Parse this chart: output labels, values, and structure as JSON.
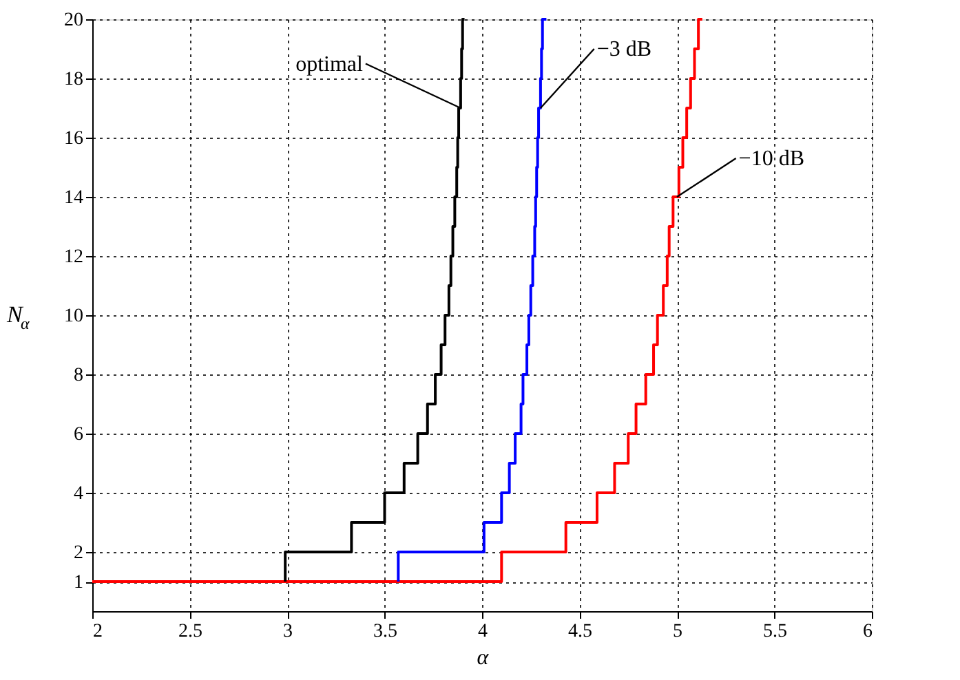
{
  "chart_data": {
    "type": "step",
    "xlabel": "α",
    "ylabel": "N$_{α}$",
    "xlim": [
      2,
      6
    ],
    "ylim": [
      0,
      20
    ],
    "xticks": [
      2,
      2.5,
      3,
      3.5,
      4,
      4.5,
      5,
      5.5,
      6
    ],
    "yticks": [
      1,
      2,
      4,
      6,
      8,
      10,
      12,
      14,
      16,
      18,
      20
    ],
    "grid": true,
    "line_style": "solid",
    "marker": "none",
    "legend": false,
    "series": [
      {
        "color": "#ff0000",
        "x": [
          2,
          4.1,
          4.43,
          4.59,
          4.68,
          4.75,
          4.79,
          4.84,
          4.88,
          4.9,
          4.93,
          4.95,
          4.96,
          4.98,
          5.01,
          5.03,
          5.05,
          5.07,
          5.09,
          5.11,
          5.13
        ],
        "values": [
          1,
          2,
          3,
          4,
          5,
          6,
          7,
          8,
          9,
          10,
          11,
          12,
          13,
          14,
          15,
          16,
          17,
          18,
          19,
          20,
          20
        ]
      },
      {
        "color": "#0000ff",
        "x": [
          3.57,
          3.57,
          4.01,
          4.1,
          4.14,
          4.17,
          4.2,
          4.21,
          4.23,
          4.24,
          4.25,
          4.26,
          4.27,
          4.275,
          4.28,
          4.285,
          4.29,
          4.3,
          4.305,
          4.31,
          4.33
        ],
        "values": [
          1,
          2,
          3,
          4,
          5,
          6,
          7,
          8,
          9,
          10,
          11,
          12,
          13,
          14,
          15,
          16,
          17,
          18,
          19,
          20,
          20
        ]
      },
      {
        "color": "#000000",
        "x": [
          2.99,
          2.99,
          3.33,
          3.5,
          3.6,
          3.67,
          3.72,
          3.76,
          3.79,
          3.81,
          3.83,
          3.84,
          3.85,
          3.86,
          3.87,
          3.875,
          3.88,
          3.89,
          3.895,
          3.9,
          3.91
        ],
        "values": [
          1,
          2,
          3,
          4,
          5,
          6,
          7,
          8,
          9,
          10,
          11,
          12,
          13,
          14,
          15,
          16,
          17,
          18,
          19,
          20,
          20
        ]
      }
    ],
    "annotations": [
      {
        "text": "optimal",
        "x": 3.89,
        "y": 17
      },
      {
        "text": "−3 dB",
        "x": 4.3,
        "y": 17
      },
      {
        "text": "−10 dB",
        "x": 5.0,
        "y": 14
      }
    ]
  }
}
